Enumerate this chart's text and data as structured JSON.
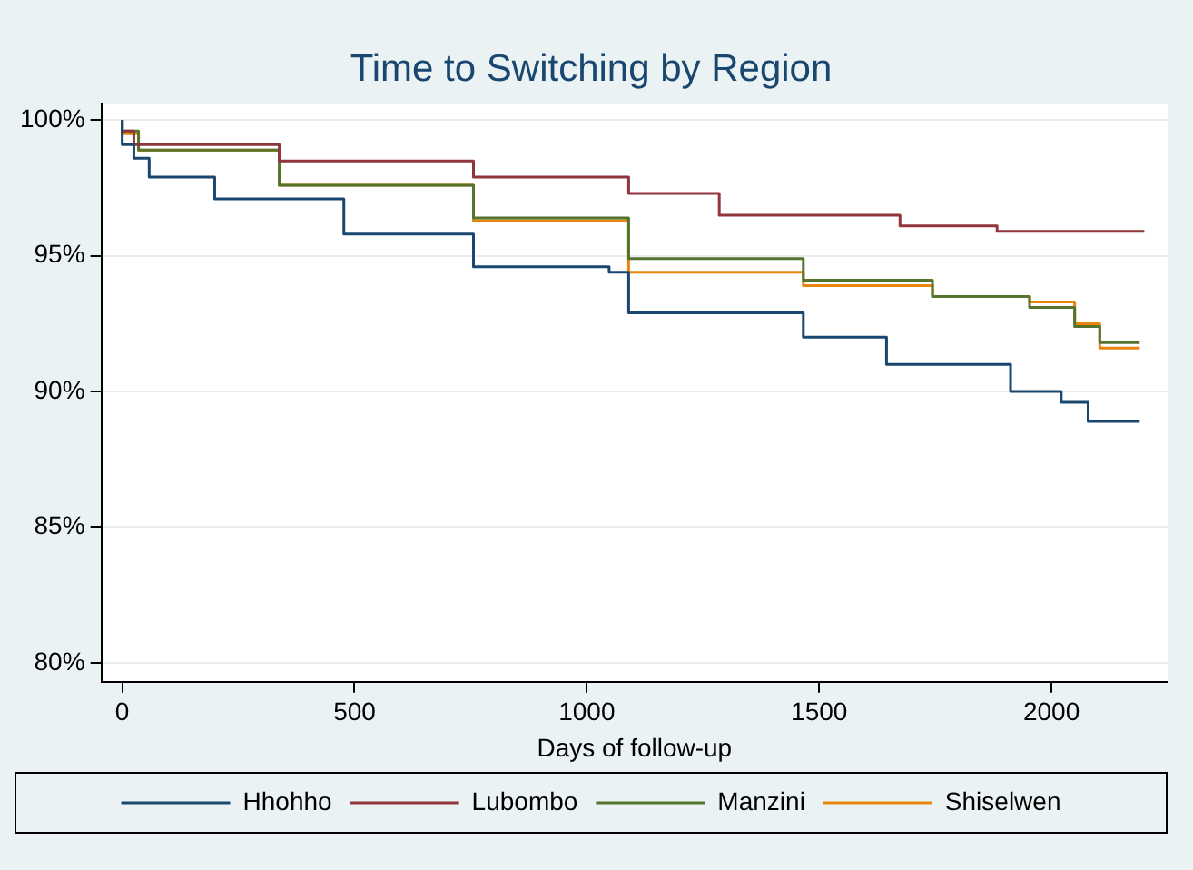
{
  "chart_data": {
    "type": "step",
    "title": "Time to Switching by Region",
    "xlabel": "Days of follow-up",
    "xlim": [
      -45,
      2250
    ],
    "ylim": [
      79.3,
      100.6
    ],
    "xticks": [
      0,
      500,
      1000,
      1500,
      2000
    ],
    "yticks": [
      {
        "value": 80,
        "label": "80%"
      },
      {
        "value": 85,
        "label": "85%"
      },
      {
        "value": 90,
        "label": "90%"
      },
      {
        "value": 95,
        "label": "95%"
      },
      {
        "value": 100,
        "label": "100%"
      }
    ],
    "grid": "y",
    "legend": "bottom",
    "marker": "none",
    "line_style": "solid",
    "series": [
      {
        "name": "Hhohho",
        "color": "#1a476f",
        "x": [
          0,
          25,
          58,
          199,
          477,
          756,
          1048,
          1090,
          1466,
          1645,
          1912,
          2021,
          2079,
          2160,
          2190
        ],
        "values": [
          100,
          99.1,
          98.6,
          97.9,
          97.1,
          95.8,
          94.6,
          94.4,
          92.9,
          92.0,
          91.0,
          90.0,
          89.6,
          88.9,
          88.9
        ]
      },
      {
        "name": "Lubombo",
        "color": "#90353b",
        "x": [
          0,
          25,
          338,
          756,
          1090,
          1285,
          1674,
          1883,
          2071,
          2200
        ],
        "values": [
          100,
          99.6,
          99.1,
          98.5,
          97.9,
          97.3,
          96.5,
          96.1,
          95.9,
          95.9
        ]
      },
      {
        "name": "Manzini",
        "color": "#55752f",
        "x": [
          0,
          35,
          338,
          756,
          1090,
          1466,
          1744,
          1953,
          2050,
          2104,
          2160,
          2190
        ],
        "values": [
          100,
          99.6,
          98.9,
          97.6,
          96.4,
          94.9,
          94.1,
          93.5,
          93.1,
          92.4,
          91.8,
          91.8
        ]
      },
      {
        "name": "Shiselwen",
        "color": "#e8850f",
        "x": [
          0,
          35,
          338,
          756,
          1090,
          1466,
          1744,
          1953,
          2050,
          2104,
          2160,
          2190
        ],
        "values": [
          100,
          99.5,
          98.9,
          97.6,
          96.3,
          94.4,
          93.9,
          93.5,
          93.3,
          92.5,
          91.6,
          91.6
        ]
      }
    ]
  }
}
